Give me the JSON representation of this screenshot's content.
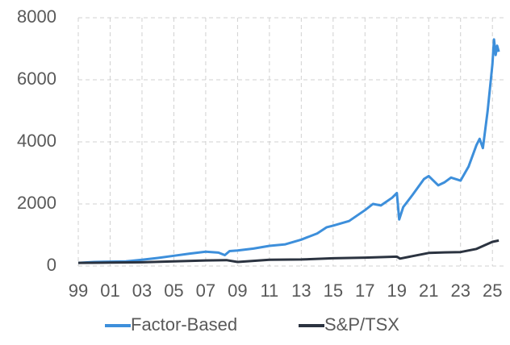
{
  "chart_data": {
    "type": "line",
    "xlim": [
      1999,
      2025.8
    ],
    "xticks": [
      {
        "value": 1999,
        "label": "99"
      },
      {
        "value": 2001,
        "label": "01"
      },
      {
        "value": 2003,
        "label": "03"
      },
      {
        "value": 2005,
        "label": "05"
      },
      {
        "value": 2007,
        "label": "07"
      },
      {
        "value": 2009,
        "label": "09"
      },
      {
        "value": 2011,
        "label": "11"
      },
      {
        "value": 2013,
        "label": "13"
      },
      {
        "value": 2015,
        "label": "15"
      },
      {
        "value": 2017,
        "label": "17"
      },
      {
        "value": 2019,
        "label": "19"
      },
      {
        "value": 2021,
        "label": "21"
      },
      {
        "value": 2023,
        "label": "23"
      },
      {
        "value": 2025,
        "label": "25"
      }
    ],
    "ylim": [
      0,
      8000
    ],
    "yticks": [
      0,
      2000,
      4000,
      6000,
      8000
    ],
    "grid": true,
    "legend": "bottom",
    "series": [
      {
        "name": "Factor-Based",
        "color": "#3d8fdb",
        "x": [
          1999,
          2000,
          2001,
          2002,
          2003,
          2004,
          2005,
          2006,
          2007,
          2007.8,
          2008.2,
          2008.5,
          2009,
          2010,
          2011,
          2012,
          2013,
          2014,
          2014.6,
          2015,
          2016,
          2017,
          2017.5,
          2018,
          2018.7,
          2019,
          2019.15,
          2019.4,
          2020,
          2020.7,
          2021,
          2021.6,
          2022,
          2022.4,
          2023,
          2023.5,
          2024,
          2024.2,
          2024.4,
          2024.7,
          2025,
          2025.1,
          2025.2,
          2025.3,
          2025.4
        ],
        "values": [
          100,
          130,
          140,
          150,
          200,
          260,
          330,
          400,
          460,
          430,
          350,
          480,
          500,
          560,
          650,
          700,
          850,
          1050,
          1250,
          1300,
          1450,
          1800,
          2000,
          1950,
          2200,
          2350,
          1500,
          1900,
          2300,
          2800,
          2900,
          2600,
          2700,
          2850,
          2750,
          3200,
          3900,
          4100,
          3800,
          5000,
          6500,
          7300,
          6800,
          7100,
          6900
        ]
      },
      {
        "name": "S&P/TSX",
        "color": "#2b3340",
        "x": [
          1999,
          2001,
          2003,
          2005,
          2007,
          2008.3,
          2009,
          2011,
          2013,
          2015,
          2017,
          2019,
          2019.2,
          2020,
          2021,
          2022,
          2023,
          2024,
          2025,
          2025.4
        ],
        "values": [
          100,
          110,
          120,
          150,
          180,
          190,
          130,
          200,
          210,
          250,
          270,
          300,
          240,
          320,
          420,
          440,
          450,
          550,
          780,
          820
        ]
      }
    ]
  }
}
